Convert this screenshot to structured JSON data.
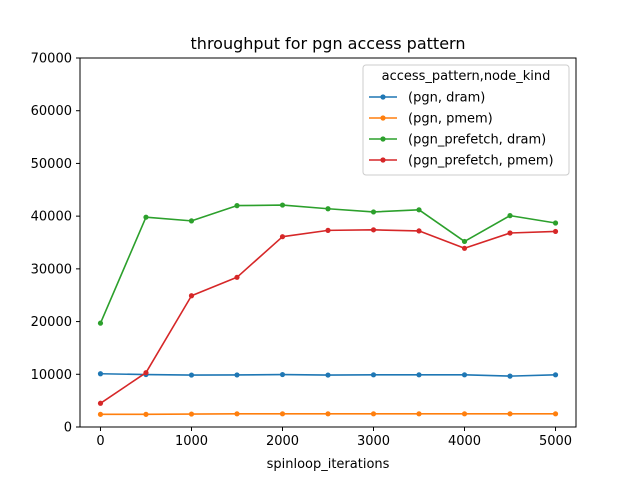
{
  "chart_data": {
    "type": "line",
    "title": "throughput for pgn access pattern",
    "xlabel": "spinloop_iterations",
    "ylabel": "",
    "xlim": [
      -225,
      5225
    ],
    "ylim": [
      0,
      70000
    ],
    "xticks": [
      0,
      1000,
      2000,
      3000,
      4000,
      5000
    ],
    "yticks": [
      0,
      10000,
      20000,
      30000,
      40000,
      50000,
      60000,
      70000
    ],
    "grid": false,
    "legend": {
      "title": "access_pattern,node_kind",
      "placement": "top-right"
    },
    "x": [
      0,
      500,
      1000,
      1500,
      2000,
      2500,
      3000,
      3500,
      4000,
      4500,
      5000
    ],
    "series": [
      {
        "name": "(pgn, dram)",
        "color": "#1f77b4",
        "values": [
          10100,
          9950,
          9850,
          9880,
          9950,
          9850,
          9900,
          9900,
          9900,
          9650,
          9900
        ]
      },
      {
        "name": "(pgn, pmem)",
        "color": "#ff7f0e",
        "values": [
          2400,
          2400,
          2450,
          2500,
          2500,
          2500,
          2500,
          2500,
          2500,
          2500,
          2500
        ]
      },
      {
        "name": "(pgn_prefetch, dram)",
        "color": "#2ca02c",
        "values": [
          19700,
          39800,
          39100,
          42000,
          42100,
          41400,
          40800,
          41200,
          35200,
          40100,
          38700
        ]
      },
      {
        "name": "(pgn_prefetch, pmem)",
        "color": "#d62728",
        "values": [
          4500,
          10300,
          24900,
          28400,
          36100,
          37300,
          37400,
          37200,
          33900,
          36800,
          37100
        ]
      }
    ]
  }
}
